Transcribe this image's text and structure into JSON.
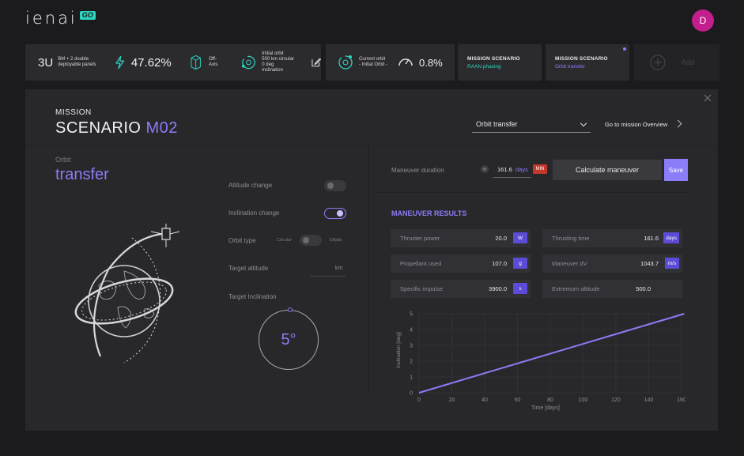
{
  "app": {
    "logo_text": "ienai",
    "logo_badge": "GO",
    "user_initial": "D"
  },
  "status": {
    "cubesat_size": "3U",
    "cubesat_desc": "BM + 2 double deployable panels",
    "power_percent": "47.62%",
    "pointing": "Off-Axis",
    "initial_orbit": [
      "Initial orbit",
      "500 km circular",
      "0 deg inclination"
    ],
    "current_orbit": [
      "Current orbit",
      "- Initial Orbit -"
    ],
    "gauge_percent": "0.8%",
    "scenarios": [
      {
        "title": "MISSION SCENARIO",
        "subtitle": "RAAN phasing"
      },
      {
        "title": "MISSION SCENARIO",
        "subtitle": "Orbit transfer"
      }
    ],
    "add_label": "Add"
  },
  "panel": {
    "mission_label": "MISSION",
    "scenario_title": "SCENARIO",
    "scenario_code": "M02",
    "select_value": "Orbit transfer",
    "go_overview": "Go to mission Overview",
    "orbit_label": "Orbit",
    "orbit_title": "transfer"
  },
  "form": {
    "altitude_change": "Altitude change",
    "inclination_change": "Inclination change",
    "orbit_type": "Orbit type",
    "orbit_circular": "Circular",
    "orbit_elliptic": "Elliptic",
    "target_altitude": "Target altitude",
    "target_altitude_unit": "km",
    "target_inclination": "Target Inclination",
    "inclination_value": "5°"
  },
  "maneuver": {
    "duration_label": "Maneuver duration",
    "duration_value": "161.6",
    "duration_unit": "days",
    "min_badge": "MIN",
    "calculate": "Calculate maneuver",
    "save": "Save"
  },
  "results": {
    "title": "MANEUVER RESULTS",
    "items": [
      {
        "label": "Thruster power",
        "value": "20.0",
        "unit": "W"
      },
      {
        "label": "Thrusting time",
        "value": "161.6",
        "unit": "days"
      },
      {
        "label": "Propellant used",
        "value": "107.0",
        "unit": "g"
      },
      {
        "label": "Maneuver dV",
        "value": "1043.7",
        "unit": "m/s"
      },
      {
        "label": "Specific impulse",
        "value": "3900.0",
        "unit": "s"
      },
      {
        "label": "Extremum altitude",
        "value": "500.0",
        "unit": ""
      }
    ]
  },
  "chart_data": {
    "type": "line",
    "xlabel": "Time [days]",
    "ylabel": "Inclination [deg]",
    "xlim": [
      0,
      160
    ],
    "ylim": [
      0,
      5
    ],
    "x_ticks": [
      0,
      20,
      40,
      60,
      80,
      100,
      120,
      140,
      160
    ],
    "y_ticks": [
      0,
      1,
      2,
      3,
      4,
      5
    ],
    "grid": true,
    "series": [
      {
        "x": [
          0,
          161.6
        ],
        "y": [
          0,
          5
        ]
      }
    ],
    "line_color": "#8b7cf7"
  }
}
